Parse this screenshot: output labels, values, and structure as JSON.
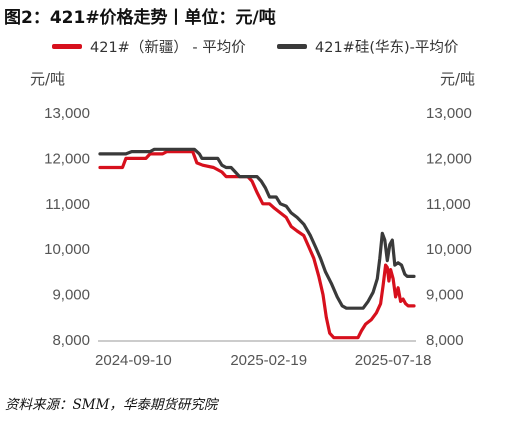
{
  "title": "图2：421#价格走势丨单位：元/吨",
  "source": "资料来源：SMM，华泰期货研究院",
  "chart_data": {
    "type": "line",
    "title": "421#价格走势",
    "unit_left": "元/吨",
    "unit_right": "元/吨",
    "ylim": [
      8000,
      13000
    ],
    "yticks": [
      8000,
      9000,
      10000,
      11000,
      12000,
      13000
    ],
    "ytick_labels": [
      "8,000",
      "9,000",
      "10,000",
      "11,000",
      "12,000",
      "13,000"
    ],
    "xlim": [
      "2024-08-01",
      "2025-08-12"
    ],
    "xticks": [
      "2024-09-10",
      "2025-02-19",
      "2025-07-18"
    ],
    "grid": false,
    "legend_position": "top",
    "series": [
      {
        "name": "421#（新疆） - 平均价",
        "color": "#d7101d",
        "points": [
          [
            "2024-08-01",
            11800
          ],
          [
            "2024-08-28",
            11800
          ],
          [
            "2024-09-01",
            12000
          ],
          [
            "2024-09-25",
            12000
          ],
          [
            "2024-09-30",
            12100
          ],
          [
            "2024-10-15",
            12100
          ],
          [
            "2024-10-20",
            12150
          ],
          [
            "2024-11-20",
            12150
          ],
          [
            "2024-11-25",
            11900
          ],
          [
            "2024-12-02",
            11850
          ],
          [
            "2024-12-15",
            11800
          ],
          [
            "2024-12-25",
            11700
          ],
          [
            "2024-12-30",
            11600
          ],
          [
            "2025-01-25",
            11600
          ],
          [
            "2025-01-30",
            11500
          ],
          [
            "2025-02-05",
            11250
          ],
          [
            "2025-02-12",
            11000
          ],
          [
            "2025-02-20",
            11000
          ],
          [
            "2025-02-26",
            10900
          ],
          [
            "2025-03-05",
            10800
          ],
          [
            "2025-03-12",
            10700
          ],
          [
            "2025-03-18",
            10500
          ],
          [
            "2025-03-25",
            10400
          ],
          [
            "2025-04-02",
            10300
          ],
          [
            "2025-04-08",
            10050
          ],
          [
            "2025-04-14",
            9800
          ],
          [
            "2025-04-20",
            9400
          ],
          [
            "2025-04-25",
            9000
          ],
          [
            "2025-04-29",
            8500
          ],
          [
            "2025-05-03",
            8150
          ],
          [
            "2025-05-08",
            8050
          ],
          [
            "2025-06-06",
            8050
          ],
          [
            "2025-06-10",
            8200
          ],
          [
            "2025-06-15",
            8350
          ],
          [
            "2025-06-22",
            8450
          ],
          [
            "2025-06-28",
            8600
          ],
          [
            "2025-07-03",
            8800
          ],
          [
            "2025-07-06",
            9200
          ],
          [
            "2025-07-09",
            9650
          ],
          [
            "2025-07-11",
            9600
          ],
          [
            "2025-07-13",
            9300
          ],
          [
            "2025-07-15",
            9550
          ],
          [
            "2025-07-18",
            9350
          ],
          [
            "2025-07-21",
            8950
          ],
          [
            "2025-07-24",
            9150
          ],
          [
            "2025-07-27",
            8850
          ],
          [
            "2025-07-30",
            8900
          ],
          [
            "2025-08-02",
            8800
          ],
          [
            "2025-08-05",
            8750
          ],
          [
            "2025-08-12",
            8750
          ]
        ]
      },
      {
        "name": "421#硅(华东)-平均价",
        "color": "#3a3a3a",
        "points": [
          [
            "2024-08-01",
            12100
          ],
          [
            "2024-09-01",
            12100
          ],
          [
            "2024-09-08",
            12150
          ],
          [
            "2024-09-30",
            12150
          ],
          [
            "2024-10-05",
            12200
          ],
          [
            "2024-11-22",
            12200
          ],
          [
            "2024-11-28",
            12100
          ],
          [
            "2024-12-01",
            12000
          ],
          [
            "2024-12-20",
            12000
          ],
          [
            "2024-12-25",
            11850
          ],
          [
            "2024-12-30",
            11800
          ],
          [
            "2025-01-05",
            11800
          ],
          [
            "2025-01-10",
            11700
          ],
          [
            "2025-01-15",
            11600
          ],
          [
            "2025-02-05",
            11600
          ],
          [
            "2025-02-10",
            11500
          ],
          [
            "2025-02-15",
            11350
          ],
          [
            "2025-02-20",
            11150
          ],
          [
            "2025-02-28",
            11150
          ],
          [
            "2025-03-05",
            11000
          ],
          [
            "2025-03-12",
            10950
          ],
          [
            "2025-03-18",
            10800
          ],
          [
            "2025-03-25",
            10700
          ],
          [
            "2025-04-02",
            10550
          ],
          [
            "2025-04-10",
            10300
          ],
          [
            "2025-04-16",
            10050
          ],
          [
            "2025-04-22",
            9800
          ],
          [
            "2025-04-28",
            9500
          ],
          [
            "2025-05-05",
            9250
          ],
          [
            "2025-05-12",
            8950
          ],
          [
            "2025-05-18",
            8750
          ],
          [
            "2025-05-23",
            8700
          ],
          [
            "2025-06-12",
            8700
          ],
          [
            "2025-06-18",
            8850
          ],
          [
            "2025-06-24",
            9050
          ],
          [
            "2025-06-29",
            9350
          ],
          [
            "2025-07-02",
            9800
          ],
          [
            "2025-07-05",
            10350
          ],
          [
            "2025-07-08",
            10200
          ],
          [
            "2025-07-11",
            9750
          ],
          [
            "2025-07-14",
            10100
          ],
          [
            "2025-07-17",
            10200
          ],
          [
            "2025-07-20",
            9650
          ],
          [
            "2025-07-24",
            9700
          ],
          [
            "2025-07-28",
            9650
          ],
          [
            "2025-08-01",
            9450
          ],
          [
            "2025-08-04",
            9400
          ],
          [
            "2025-08-12",
            9400
          ]
        ]
      }
    ]
  }
}
